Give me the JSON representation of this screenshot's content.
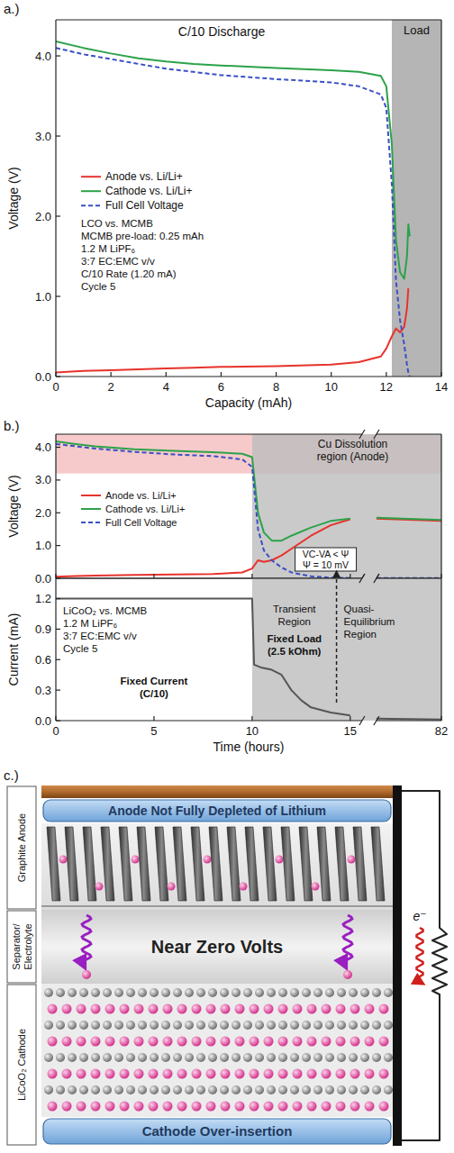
{
  "panel_labels": [
    "a.)",
    "b.)",
    "c.)"
  ],
  "chart_data": [
    {
      "type": "line",
      "title": "C/10 Discharge",
      "x_label": "Capacity (mAh)",
      "y_label": "Voltage (V)",
      "xlim": [
        0,
        14
      ],
      "ylim": [
        0,
        4.45
      ],
      "xticks": [
        0,
        2,
        4,
        6,
        8,
        10,
        12,
        14
      ],
      "yticks": [
        {
          "value": 0,
          "label": "0.0"
        },
        {
          "value": 1,
          "label": "1.0"
        },
        {
          "value": 2,
          "label": "2.0"
        },
        {
          "value": 3,
          "label": "3.0"
        },
        {
          "value": 4,
          "label": "4.0"
        }
      ],
      "legend": "left",
      "regions": [
        {
          "x0": 12.2,
          "x1": 14,
          "label": "Load",
          "color": "#a3a3a3"
        }
      ],
      "notes": [
        "LCO vs. MCMB",
        "MCMB pre-load: 0.25 mAh",
        "1.2 M LiPF₆",
        "3:7 EC:EMC v/v",
        "C/10 Rate (1.20 mA)",
        "Cycle 5"
      ],
      "x": [
        0,
        1,
        2,
        3,
        4,
        5,
        6,
        8,
        10,
        11,
        11.8,
        12.0,
        12.2,
        12.35,
        12.5,
        12.65,
        12.75,
        12.8,
        12.85
      ],
      "series": [
        {
          "name": "Anode vs. Li/Li+",
          "color": "#e8322c",
          "line_style": "solid",
          "values": [
            0.05,
            0.07,
            0.08,
            0.09,
            0.1,
            0.11,
            0.12,
            0.13,
            0.15,
            0.18,
            0.25,
            0.35,
            0.5,
            0.6,
            0.55,
            0.62,
            0.85,
            1.1,
            null
          ]
        },
        {
          "name": "Cathode vs. Li/Li+",
          "color": "#2ca24a",
          "line_style": "solid",
          "values": [
            4.18,
            4.1,
            4.03,
            3.97,
            3.93,
            3.9,
            3.88,
            3.85,
            3.82,
            3.8,
            3.75,
            3.62,
            2.9,
            1.7,
            1.3,
            1.22,
            1.5,
            1.9,
            1.75
          ]
        },
        {
          "name": "Full Cell Voltage",
          "color": "#3b4fc4",
          "line_style": "dashed",
          "values": [
            4.1,
            4.02,
            3.96,
            3.9,
            3.84,
            3.8,
            3.76,
            3.71,
            3.67,
            3.62,
            3.52,
            3.35,
            2.4,
            1.2,
            0.7,
            0.4,
            0.15,
            0.05,
            0.0
          ]
        }
      ]
    },
    {
      "type": "line",
      "y_label": "Voltage (V)",
      "xlim": [
        0,
        82
      ],
      "x_break": [
        15.6,
        76
      ],
      "ylim": [
        0,
        4.4
      ],
      "xticks": [
        0,
        5,
        10,
        15,
        82
      ],
      "yticks": [
        {
          "value": 0,
          "label": "0.0"
        },
        {
          "value": 1,
          "label": "1.0"
        },
        {
          "value": 2,
          "label": "2.0"
        },
        {
          "value": 3,
          "label": "3.0"
        },
        {
          "value": 4,
          "label": "4.0"
        }
      ],
      "tick_labels": "y",
      "legend": "left",
      "regions": [
        {
          "y0": 3.2,
          "y1": 4.4,
          "label": "Cu Dissolution region (Anode)",
          "color": "#f5c4c4"
        },
        {
          "x0": 10,
          "x1": 82,
          "color": "#bdbdbd"
        }
      ],
      "criterion": [
        "VC-VA < Ψ",
        "Ψ = 10 mV"
      ],
      "criterion_x": 14.3,
      "x": [
        0,
        1,
        2,
        4,
        6,
        8,
        9.5,
        10,
        10.3,
        10.6,
        11,
        11.5,
        12,
        13,
        14,
        15,
        15.5,
        76,
        82
      ],
      "series": [
        {
          "name": "Anode vs. Li/Li+",
          "color": "#e8322c",
          "line_style": "solid",
          "values": [
            0.05,
            0.07,
            0.08,
            0.1,
            0.12,
            0.13,
            0.18,
            0.3,
            0.55,
            0.5,
            0.55,
            0.7,
            0.9,
            1.3,
            1.62,
            1.8,
            null,
            1.82,
            1.75
          ]
        },
        {
          "name": "Cathode vs. Li/Li+",
          "color": "#2ca24a",
          "line_style": "solid",
          "values": [
            4.18,
            4.1,
            4.03,
            3.94,
            3.89,
            3.85,
            3.8,
            3.7,
            2.0,
            1.4,
            1.15,
            1.15,
            1.3,
            1.55,
            1.75,
            1.82,
            null,
            1.85,
            1.78
          ]
        },
        {
          "name": "Full Cell Voltage",
          "color": "#3b4fc4",
          "line_style": "dashed",
          "values": [
            4.1,
            4.03,
            3.96,
            3.86,
            3.78,
            3.73,
            3.63,
            3.4,
            1.5,
            0.85,
            0.55,
            0.33,
            0.18,
            0.06,
            0.02,
            0.01,
            null,
            0.01,
            0.01
          ]
        }
      ]
    },
    {
      "type": "line",
      "x_label": "Time (hours)",
      "y_label": "Current (mA)",
      "xlim": [
        0,
        82
      ],
      "x_break": [
        15.6,
        76
      ],
      "ylim": [
        0,
        1.4
      ],
      "xticks": [
        0,
        5,
        10,
        15,
        82
      ],
      "yticks": [
        {
          "value": 0,
          "label": "0.0"
        },
        0.3,
        0.6,
        0.9,
        1.2
      ],
      "regions": [
        {
          "x0": 10,
          "x1": 82,
          "color": "#bdbdbd"
        }
      ],
      "notes": [
        "LiCoO₂ vs. MCMB",
        "1.2 M LiPF₆",
        "3:7 EC:EMC v/v",
        "Cycle 5"
      ],
      "phases": [
        [
          "Fixed Current",
          "(C/10)"
        ],
        [
          "Fixed Load",
          "(2.5 kOhm)"
        ]
      ],
      "region_labels": [
        [
          "Transient",
          "Region"
        ],
        [
          "Quasi-",
          "Equilibrium",
          "Region"
        ]
      ],
      "x": [
        0,
        10,
        10.1,
        10.5,
        11,
        11.5,
        12,
        12.5,
        13,
        14,
        15,
        15.5,
        76,
        82
      ],
      "series": [
        {
          "color": "#555555",
          "line_style": "solid",
          "values": [
            1.2,
            1.2,
            0.55,
            0.52,
            0.5,
            0.45,
            0.3,
            0.2,
            0.13,
            0.08,
            0.05,
            null,
            0.02,
            0.01
          ]
        }
      ]
    }
  ],
  "diagram": {
    "top_box": "Anode Not Fully Depleted of Lithium",
    "bottom_box": "Cathode Over-insertion",
    "center_label": "Near Zero Volts",
    "layer_labels": [
      "Graphite Anode",
      "Separator/Electrolyte",
      "LiCoO₂ Cathode"
    ],
    "electron_label": "e⁻"
  }
}
